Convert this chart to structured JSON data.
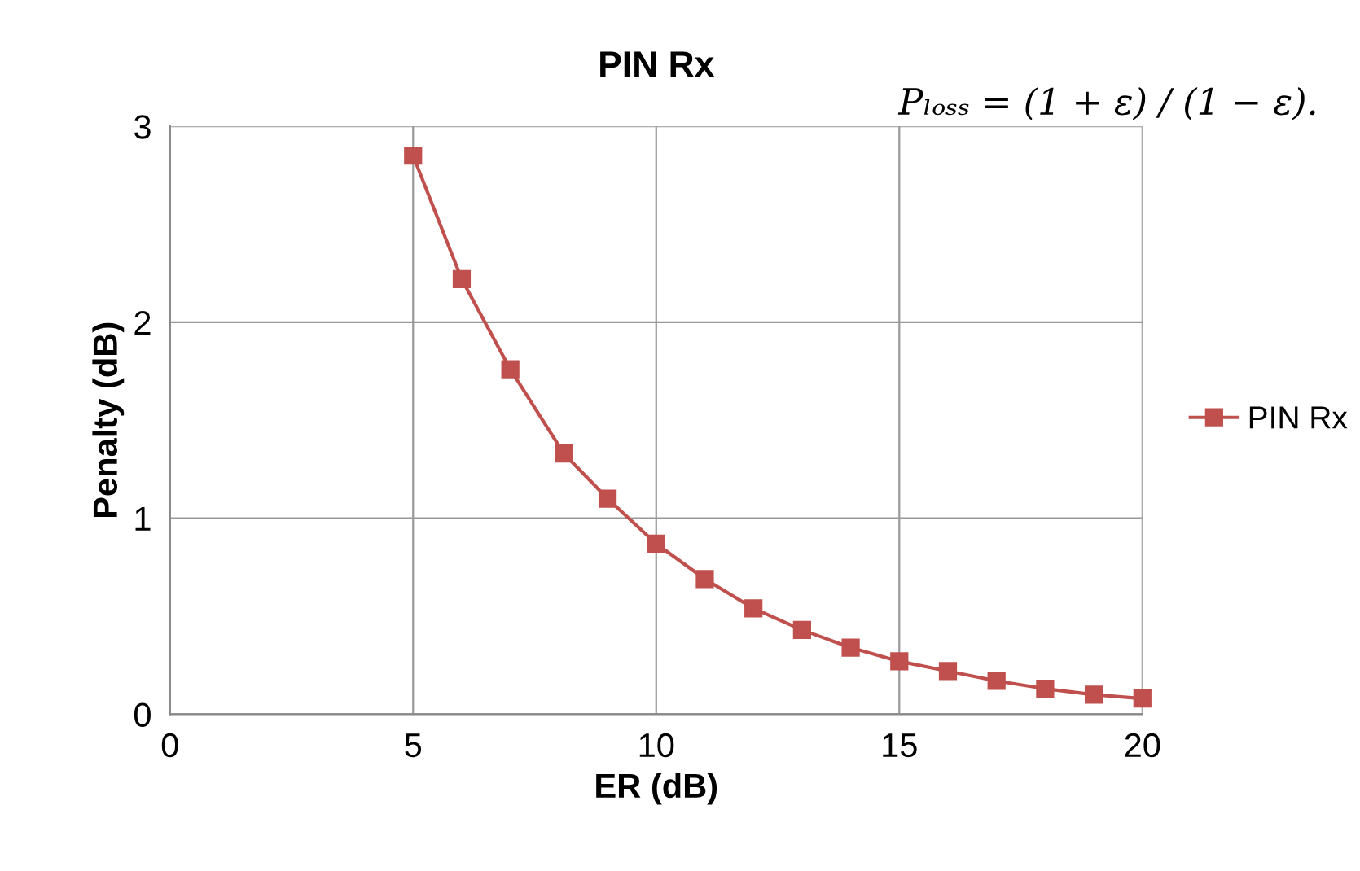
{
  "chart_data": {
    "type": "line",
    "title": "PIN Rx",
    "xlabel": "ER (dB)",
    "ylabel": "Penalty (dB)",
    "annotations": [
      "Pₗₒₛₛ = (1 + ε) / (1 − ε)."
    ],
    "series": [
      {
        "name": "PIN Rx",
        "color": "#c0504d",
        "x": [
          5,
          6,
          7,
          8.1,
          9,
          10,
          11,
          12,
          13,
          14,
          15,
          16,
          17,
          18,
          19,
          20
        ],
        "values": [
          2.85,
          2.22,
          1.76,
          1.33,
          1.1,
          0.87,
          0.69,
          0.54,
          0.43,
          0.34,
          0.27,
          0.22,
          0.17,
          0.13,
          0.1,
          0.08
        ]
      }
    ],
    "xlim": [
      0,
      20
    ],
    "xticks": [
      0,
      5,
      10,
      15,
      20
    ],
    "ylim": [
      0,
      3
    ],
    "yticks": [
      0,
      1,
      2,
      3
    ],
    "grid": true,
    "legend": "right",
    "marker": "square",
    "line_style": "solid"
  }
}
